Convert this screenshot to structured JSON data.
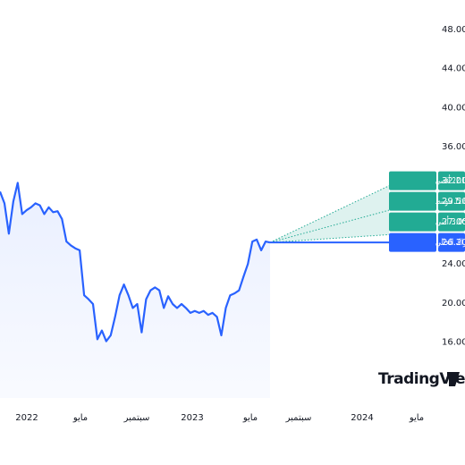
{
  "chart_data": {
    "type": "line",
    "series": [
      {
        "color": "#2962ff",
        "values": [
          31.4,
          30.2,
          27.1,
          30.4,
          32.3,
          29.1,
          29.5,
          29.8,
          30.2,
          30.0,
          29.1,
          29.8,
          29.3,
          29.4,
          28.6,
          26.3,
          25.9,
          25.6,
          25.4,
          20.8,
          20.4,
          19.9,
          16.3,
          17.2,
          16.1,
          16.7,
          18.6,
          20.8,
          21.9,
          20.8,
          19.5,
          19.9,
          17.0,
          20.4,
          21.3,
          21.6,
          21.3,
          19.5,
          20.7,
          19.9,
          19.5,
          19.9,
          19.5,
          19.0,
          19.2,
          19.0,
          19.2,
          18.8,
          19.0,
          18.6,
          16.7,
          19.5,
          20.8,
          21.0,
          21.3,
          22.7,
          24.0,
          26.3,
          26.5,
          25.4,
          26.3,
          26.2
        ]
      }
    ],
    "xticks": [
      "2022",
      "مايو",
      "سبتمبر",
      "2023",
      "مايو",
      "سبتمبر",
      "2024",
      "مايو"
    ],
    "ylim": [
      10.3,
      51
    ],
    "yticks": [
      {
        "value": 16,
        "label": "16.00"
      },
      {
        "value": 20,
        "label": "20.00"
      },
      {
        "value": 24,
        "label": "24.00"
      },
      {
        "value": 36,
        "label": "36.00"
      },
      {
        "value": 40,
        "label": "40.00"
      },
      {
        "value": 44,
        "label": "44.00"
      },
      {
        "value": 48,
        "label": "48.00"
      }
    ],
    "targets": [
      {
        "name": "+22.14% أقصى",
        "value": 32,
        "value_label": "32.00"
      },
      {
        "name": "+12.60% متوسط",
        "value": 29.5,
        "value_label": "29.50"
      },
      {
        "name": "+3.05% أدنى",
        "value": 27,
        "value_label": "27.00"
      }
    ],
    "target_color": "#22ab94",
    "current": {
      "name": "الاشتراك الحالي",
      "value": 26.2,
      "value_label": "26.20"
    },
    "watermark": "TradingView"
  }
}
